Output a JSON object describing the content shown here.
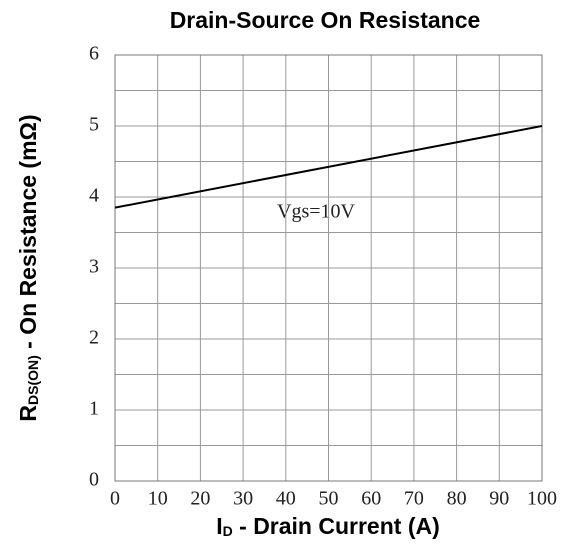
{
  "chart_data": {
    "type": "line",
    "title": "Drain-Source On Resistance",
    "x_label": {
      "main": "I",
      "sub": "D",
      "rest": " - Drain Current (A)"
    },
    "y_label": {
      "main": "R",
      "sub": "DS(ON)",
      "rest": " - On Resistance (mΩ)"
    },
    "annotation": "Vgs=10V",
    "x": [
      0,
      100
    ],
    "series": [
      {
        "name": "Vgs=10V",
        "color": "#000000",
        "values": [
          3.85,
          5.0
        ]
      }
    ],
    "xlim": [
      0,
      100
    ],
    "xticks": [
      0,
      10,
      20,
      30,
      40,
      50,
      60,
      70,
      80,
      90,
      100
    ],
    "ylim": [
      0,
      6
    ],
    "yticks": [
      0,
      1,
      2,
      3,
      4,
      5,
      6
    ],
    "y_minor_ticks": [
      0.5,
      1.5,
      2.5,
      3.5,
      4.5,
      5.5
    ],
    "grid": true
  }
}
